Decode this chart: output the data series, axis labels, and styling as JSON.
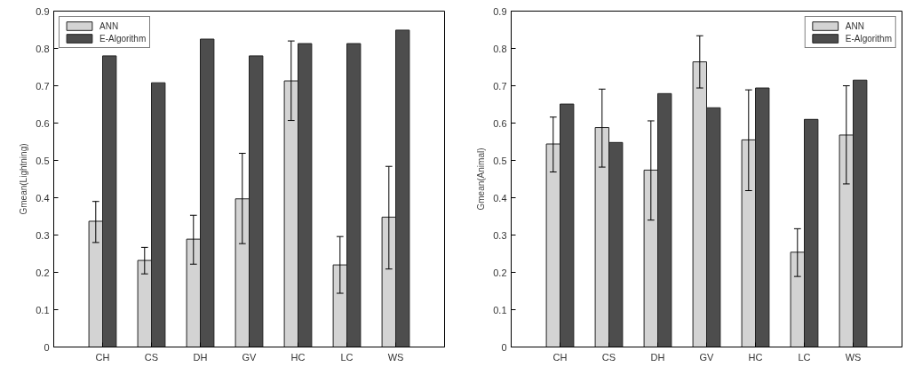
{
  "chart_data": [
    {
      "type": "bar",
      "ylabel": "Gmean(Lightning)",
      "categories": [
        "CH",
        "CS",
        "DH",
        "GV",
        "HC",
        "LC",
        "WS"
      ],
      "ylim": [
        0,
        0.9
      ],
      "yticks": [
        0,
        0.1,
        0.2,
        0.3,
        0.4,
        0.5,
        0.6,
        0.7,
        0.8,
        0.9
      ],
      "legend": "top left",
      "series": [
        {
          "name": "ANN",
          "color": "#d3d3d3",
          "values": [
            0.337,
            0.232,
            0.289,
            0.397,
            0.713,
            0.22,
            0.348
          ],
          "errors": [
            [
              0.28,
              0.39
            ],
            [
              0.196,
              0.267
            ],
            [
              0.222,
              0.353
            ],
            [
              0.277,
              0.519
            ],
            [
              0.607,
              0.82
            ],
            [
              0.144,
              0.296
            ],
            [
              0.209,
              0.484
            ]
          ]
        },
        {
          "name": "E-Algorithm",
          "color": "#4d4d4d",
          "values": [
            0.78,
            0.708,
            0.825,
            0.78,
            0.813,
            0.813,
            0.849
          ]
        }
      ]
    },
    {
      "type": "bar",
      "ylabel": "Gmean(Animal)",
      "categories": [
        "CH",
        "CS",
        "DH",
        "GV",
        "HC",
        "LC",
        "WS"
      ],
      "ylim": [
        0,
        0.9
      ],
      "yticks": [
        0,
        0.1,
        0.2,
        0.3,
        0.4,
        0.5,
        0.6,
        0.7,
        0.8,
        0.9
      ],
      "legend": "top right",
      "series": [
        {
          "name": "ANN",
          "color": "#d3d3d3",
          "values": [
            0.544,
            0.588,
            0.474,
            0.764,
            0.555,
            0.254,
            0.568
          ],
          "errors": [
            [
              0.469,
              0.616
            ],
            [
              0.482,
              0.691
            ],
            [
              0.34,
              0.606
            ],
            [
              0.694,
              0.834
            ],
            [
              0.419,
              0.689
            ],
            [
              0.189,
              0.317
            ],
            [
              0.437,
              0.7
            ]
          ]
        },
        {
          "name": "E-Algorithm",
          "color": "#4d4d4d",
          "values": [
            0.651,
            0.548,
            0.679,
            0.641,
            0.694,
            0.61,
            0.715
          ]
        }
      ]
    }
  ]
}
